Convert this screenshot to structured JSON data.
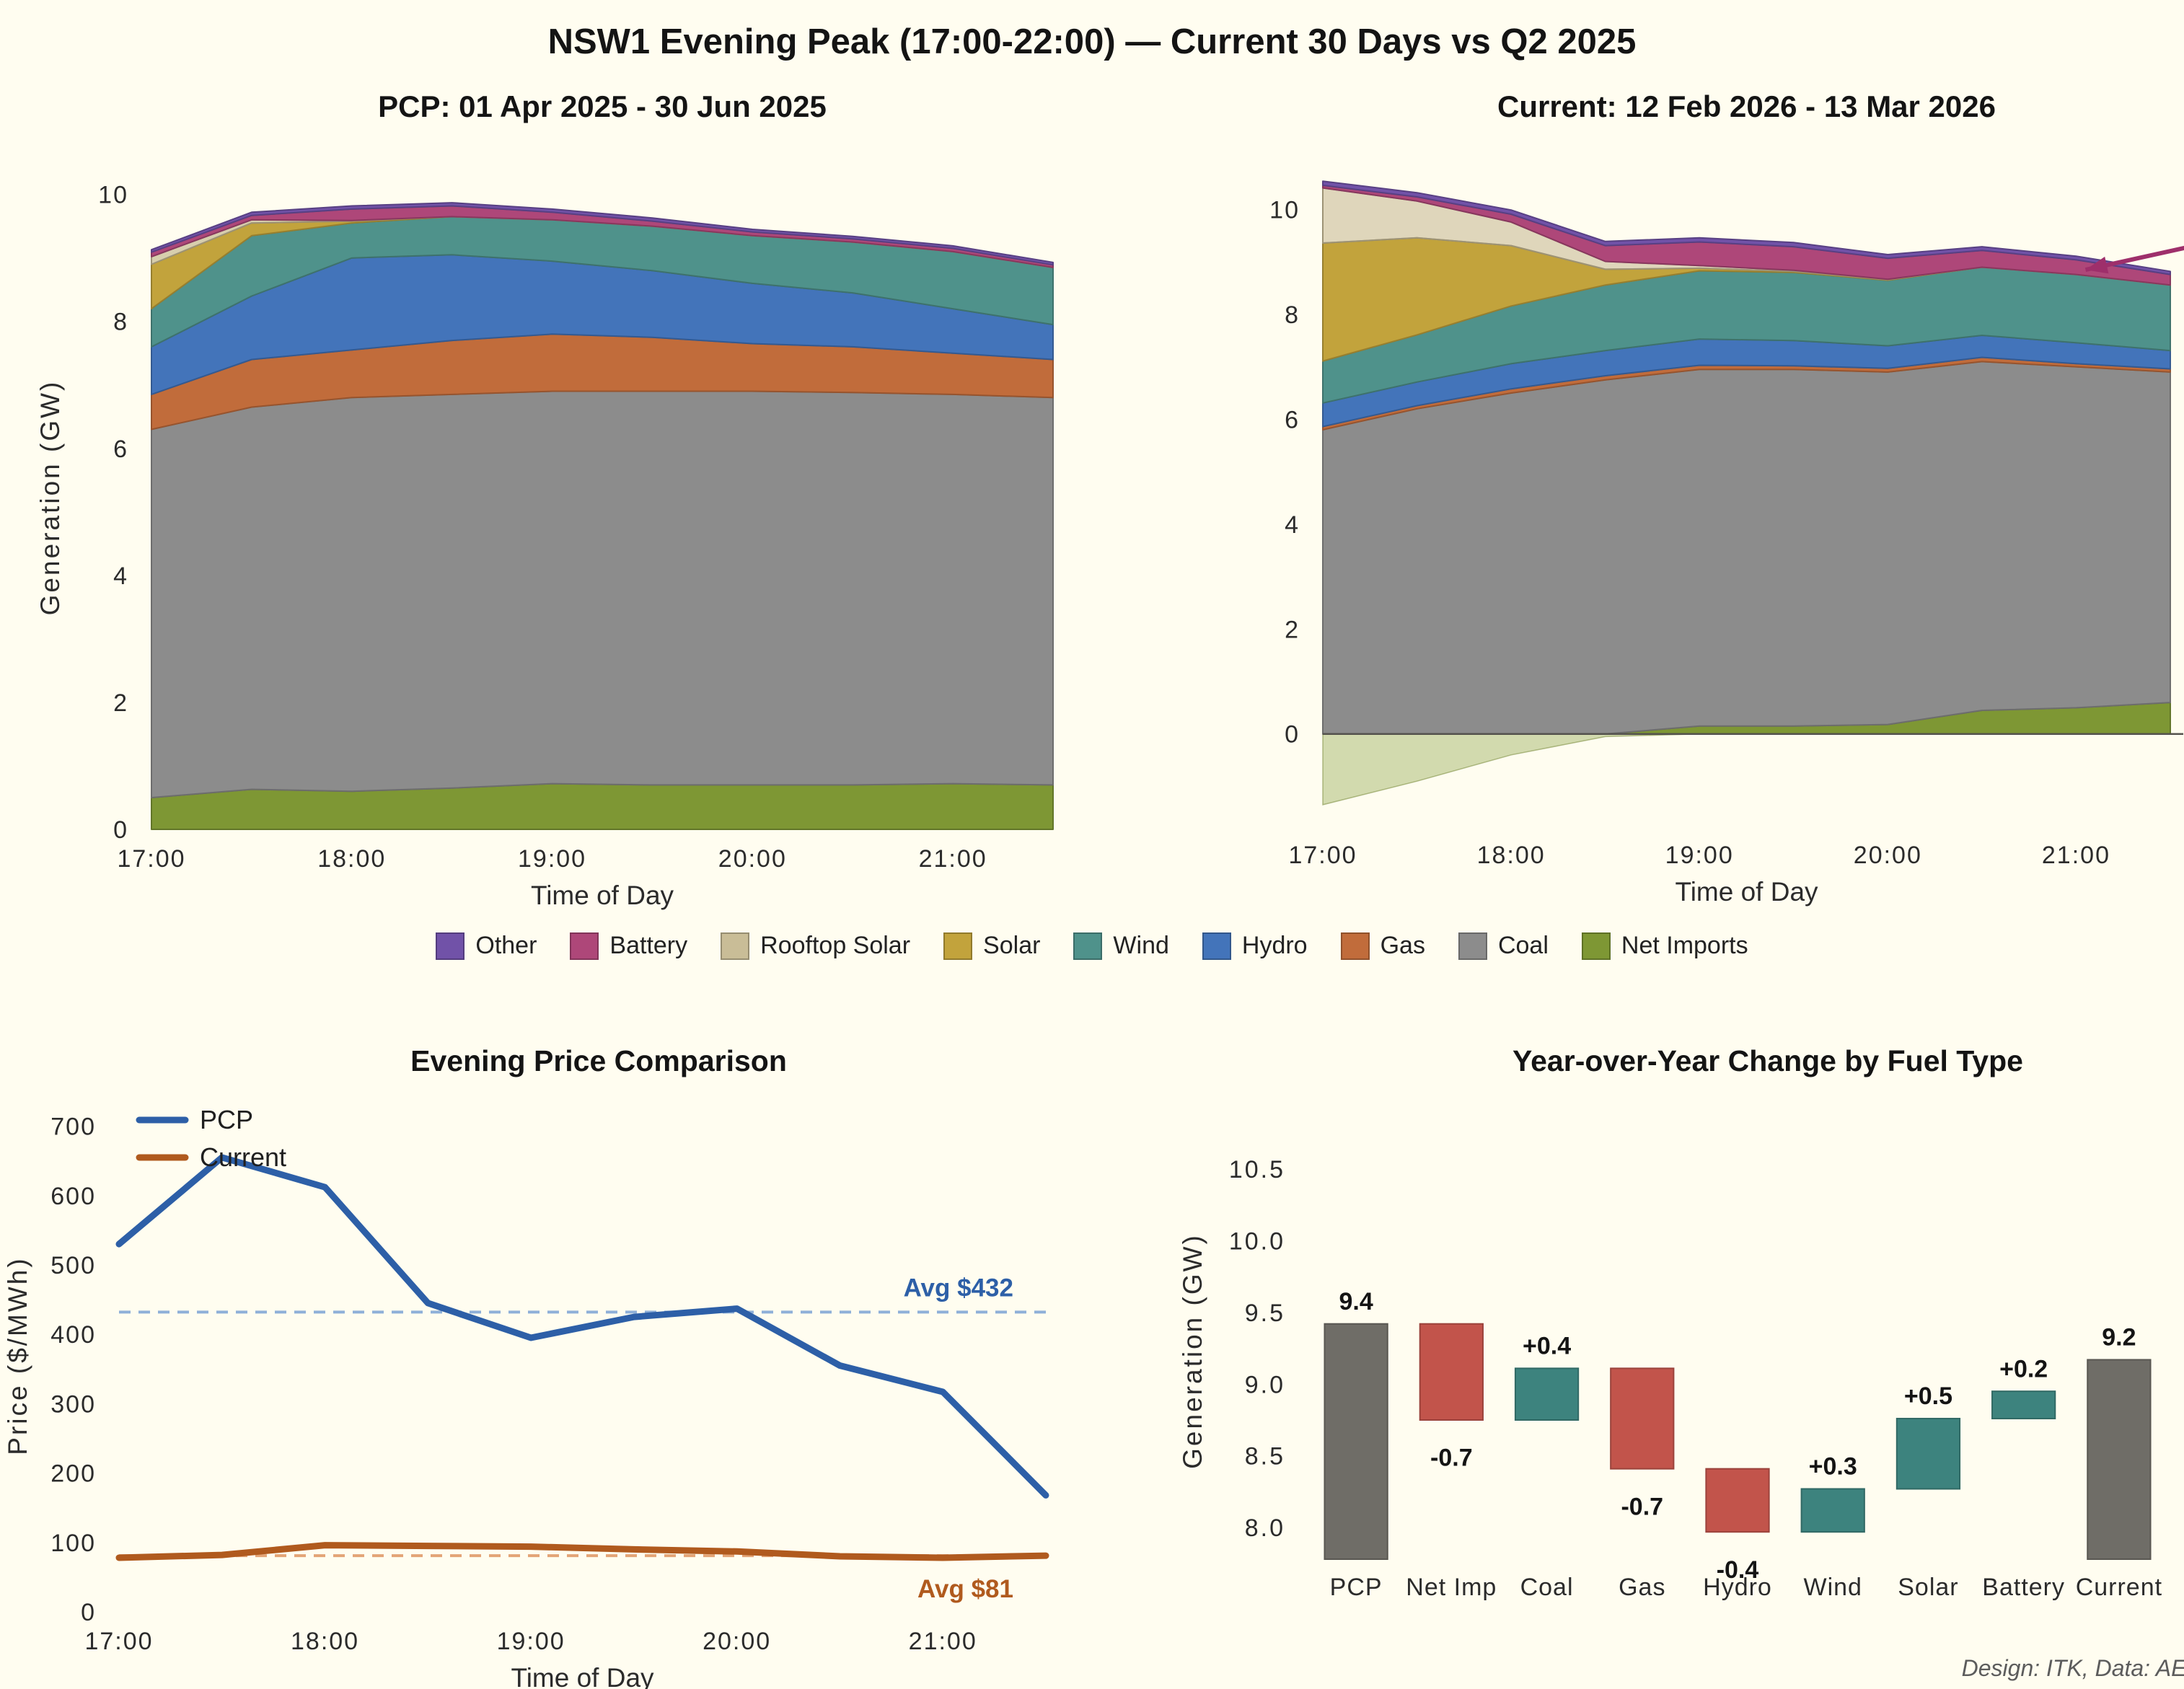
{
  "page": {
    "title": "NSW1 Evening Peak (17:00-22:00) — Current 30 Days vs Q2 2025",
    "footer": "Design: ITK, Data: AEMO",
    "background": "#FFFDF0"
  },
  "legend": {
    "items": [
      {
        "label": "Other",
        "color": "#7152A8"
      },
      {
        "label": "Battery",
        "color": "#AE4779"
      },
      {
        "label": "Rooftop Solar",
        "color": "#C9BD97"
      },
      {
        "label": "Solar",
        "color": "#C2A33C"
      },
      {
        "label": "Wind",
        "color": "#4F928B"
      },
      {
        "label": "Hydro",
        "color": "#4374BA"
      },
      {
        "label": "Gas",
        "color": "#C16C3B"
      },
      {
        "label": "Coal",
        "color": "#8C8C8C"
      },
      {
        "label": "Net Imports",
        "color": "#7E9734"
      }
    ]
  },
  "chart_data": [
    {
      "id": "pcp_area",
      "type": "area",
      "title": "PCP: 01 Apr 2025 - 30 Jun 2025",
      "xlabel": "Time of Day",
      "ylabel": "Generation (GW)",
      "x": [
        17,
        17.5,
        18,
        18.5,
        19,
        19.5,
        20,
        20.5,
        21,
        21.5
      ],
      "xlim": [
        17,
        21.5
      ],
      "ylim": [
        0,
        10.45
      ],
      "yticks": [
        0,
        2,
        4,
        6,
        8,
        10
      ],
      "xticks": [
        {
          "v": 17,
          "label": "17:00"
        },
        {
          "v": 18,
          "label": "18:00"
        },
        {
          "v": 19,
          "label": "19:00"
        },
        {
          "v": 20,
          "label": "20:00"
        },
        {
          "v": 21,
          "label": "21:00"
        }
      ],
      "series": [
        {
          "name": "Net Imports",
          "color": "#7E9734",
          "values": [
            0.5,
            0.63,
            0.6,
            0.65,
            0.72,
            0.7,
            0.7,
            0.7,
            0.72,
            0.7
          ]
        },
        {
          "name": "Coal",
          "color": "#8C8C8C",
          "values": [
            5.8,
            6.02,
            6.2,
            6.2,
            6.18,
            6.2,
            6.2,
            6.18,
            6.13,
            6.1
          ]
        },
        {
          "name": "Gas",
          "color": "#C16C3B",
          "values": [
            0.55,
            0.75,
            0.75,
            0.85,
            0.9,
            0.85,
            0.75,
            0.72,
            0.65,
            0.6
          ]
        },
        {
          "name": "Hydro",
          "color": "#4374BA",
          "values": [
            0.75,
            1.0,
            1.45,
            1.35,
            1.15,
            1.05,
            0.95,
            0.85,
            0.7,
            0.55
          ]
        },
        {
          "name": "Wind",
          "color": "#4F928B",
          "values": [
            0.6,
            0.95,
            0.55,
            0.6,
            0.65,
            0.7,
            0.75,
            0.8,
            0.9,
            0.9
          ]
        },
        {
          "name": "Solar",
          "color": "#C2A33C",
          "values": [
            0.7,
            0.2,
            0.03,
            0,
            0,
            0,
            0,
            0,
            0,
            0
          ]
        },
        {
          "name": "Rooftop Solar",
          "color": "#C9BD97",
          "opacity": 0.75,
          "values": [
            0.12,
            0.05,
            0.01,
            0,
            0,
            0,
            0,
            0,
            0,
            0
          ]
        },
        {
          "name": "Battery",
          "color": "#AE4779",
          "values": [
            0.07,
            0.07,
            0.18,
            0.17,
            0.12,
            0.08,
            0.06,
            0.05,
            0.05,
            0.04
          ]
        },
        {
          "name": "Other",
          "color": "#7152A8",
          "values": [
            0.04,
            0.05,
            0.05,
            0.05,
            0.05,
            0.05,
            0.04,
            0.04,
            0.04,
            0.04
          ]
        }
      ]
    },
    {
      "id": "current_area",
      "type": "area",
      "title": "Current: 12 Feb 2026 - 13 Mar 2026",
      "xlabel": "Time of Day",
      "ylabel": "",
      "x": [
        17,
        17.5,
        18,
        18.5,
        19,
        19.5,
        20,
        20.5,
        21,
        21.5
      ],
      "xlim": [
        17,
        21.5
      ],
      "ylim": [
        -1.75,
        10.9
      ],
      "yticks": [
        0,
        2,
        4,
        6,
        8,
        10
      ],
      "xticks": [
        {
          "v": 17,
          "label": "17:00"
        },
        {
          "v": 18,
          "label": "18:00"
        },
        {
          "v": 19,
          "label": "19:00"
        },
        {
          "v": 20,
          "label": "20:00"
        },
        {
          "v": 21,
          "label": "21:00"
        }
      ],
      "zero_line": true,
      "annotation": {
        "head_x": 21.05,
        "head_y": 8.85,
        "tail_x": 21.68,
        "tail_y": 9.35,
        "color": "#9E2F6B"
      },
      "series": [
        {
          "name": "Net Imports",
          "color": "#7E9734",
          "values": [
            -1.35,
            -0.9,
            -0.4,
            -0.05,
            0.15,
            0.15,
            0.18,
            0.45,
            0.5,
            0.6
          ]
        },
        {
          "name": "Coal",
          "color": "#8C8C8C",
          "values": [
            5.8,
            6.2,
            6.5,
            6.75,
            6.8,
            6.8,
            6.72,
            6.65,
            6.5,
            6.3
          ]
        },
        {
          "name": "Gas",
          "color": "#C16C3B",
          "values": [
            0.06,
            0.06,
            0.08,
            0.08,
            0.08,
            0.07,
            0.07,
            0.08,
            0.06,
            0.06
          ]
        },
        {
          "name": "Hydro",
          "color": "#4374BA",
          "values": [
            0.45,
            0.45,
            0.48,
            0.48,
            0.5,
            0.48,
            0.43,
            0.42,
            0.4,
            0.35
          ]
        },
        {
          "name": "Wind",
          "color": "#4F928B",
          "values": [
            0.8,
            0.9,
            1.1,
            1.25,
            1.3,
            1.3,
            1.25,
            1.3,
            1.3,
            1.25
          ]
        },
        {
          "name": "Solar",
          "color": "#C2A33C",
          "values": [
            2.25,
            1.85,
            1.15,
            0.3,
            0.05,
            0.02,
            0.01,
            0,
            0,
            0
          ]
        },
        {
          "name": "Rooftop Solar",
          "color": "#C9BD97",
          "opacity": 0.6,
          "values": [
            1.05,
            0.7,
            0.45,
            0.15,
            0.05,
            0.02,
            0.01,
            0,
            0,
            0
          ]
        },
        {
          "name": "Battery",
          "color": "#AE4779",
          "values": [
            0.05,
            0.08,
            0.15,
            0.3,
            0.45,
            0.45,
            0.4,
            0.32,
            0.28,
            0.2
          ]
        },
        {
          "name": "Other",
          "color": "#7152A8",
          "values": [
            0.08,
            0.08,
            0.08,
            0.08,
            0.08,
            0.08,
            0.07,
            0.07,
            0.07,
            0.06
          ]
        }
      ]
    },
    {
      "id": "price",
      "type": "line",
      "title": "Evening Price Comparison",
      "xlabel": "Time of Day",
      "ylabel": "Price ($/MWh)",
      "x": [
        17,
        17.5,
        18,
        18.5,
        19,
        19.5,
        20,
        20.5,
        21,
        21.5
      ],
      "xlim": [
        17,
        21.5
      ],
      "ylim": [
        0,
        738
      ],
      "yticks": [
        0,
        100,
        200,
        300,
        400,
        500,
        600,
        700
      ],
      "xticks": [
        {
          "v": 17,
          "label": "17:00"
        },
        {
          "v": 18,
          "label": "18:00"
        },
        {
          "v": 19,
          "label": "19:00"
        },
        {
          "v": 20,
          "label": "20:00"
        },
        {
          "v": 21,
          "label": "21:00"
        }
      ],
      "series": [
        {
          "name": "PCP",
          "color": "#2D5FA7",
          "values": [
            530,
            655,
            612,
            445,
            395,
            425,
            437,
            355,
            317,
            168
          ]
        },
        {
          "name": "Current",
          "color": "#B05A1E",
          "values": [
            78,
            82,
            96,
            95,
            94,
            90,
            87,
            80,
            78,
            81
          ]
        }
      ],
      "avg_lines": [
        {
          "value": 432,
          "label": "Avg $432",
          "line_color": "#8FB0D8",
          "label_color": "#2D5FA7"
        },
        {
          "value": 81,
          "label": "Avg $81",
          "line_color": "#E3A476",
          "label_color": "#B05A1E"
        }
      ]
    },
    {
      "id": "waterfall",
      "type": "waterfall",
      "title": "Year-over-Year Change by Fuel Type",
      "ylabel": "Generation (GW)",
      "ylim": [
        7.78,
        10.68
      ],
      "yticks": [
        8.0,
        8.5,
        9.0,
        9.5,
        10.0,
        10.5
      ],
      "colors": {
        "total": "#6F6D67",
        "increase": "#3D837E",
        "decrease": "#C2544B"
      },
      "steps": [
        {
          "label": "PCP",
          "kind": "total",
          "start": null,
          "end": 9.42,
          "display": "9.4"
        },
        {
          "label": "Net Imp",
          "kind": "decrease",
          "start": 9.42,
          "end": 8.75,
          "display": "-0.7"
        },
        {
          "label": "Coal",
          "kind": "increase",
          "start": 8.75,
          "end": 9.11,
          "display": "+0.4"
        },
        {
          "label": "Gas",
          "kind": "decrease",
          "start": 9.11,
          "end": 8.41,
          "display": "-0.7"
        },
        {
          "label": "Hydro",
          "kind": "decrease",
          "start": 8.41,
          "end": 7.97,
          "display": "-0.4"
        },
        {
          "label": "Wind",
          "kind": "increase",
          "start": 7.97,
          "end": 8.27,
          "display": "+0.3"
        },
        {
          "label": "Solar",
          "kind": "increase",
          "start": 8.27,
          "end": 8.76,
          "display": "+0.5"
        },
        {
          "label": "Battery",
          "kind": "increase",
          "start": 8.76,
          "end": 8.95,
          "display": "+0.2"
        },
        {
          "label": "Current",
          "kind": "total",
          "start": null,
          "end": 9.17,
          "display": "9.2"
        }
      ]
    }
  ]
}
